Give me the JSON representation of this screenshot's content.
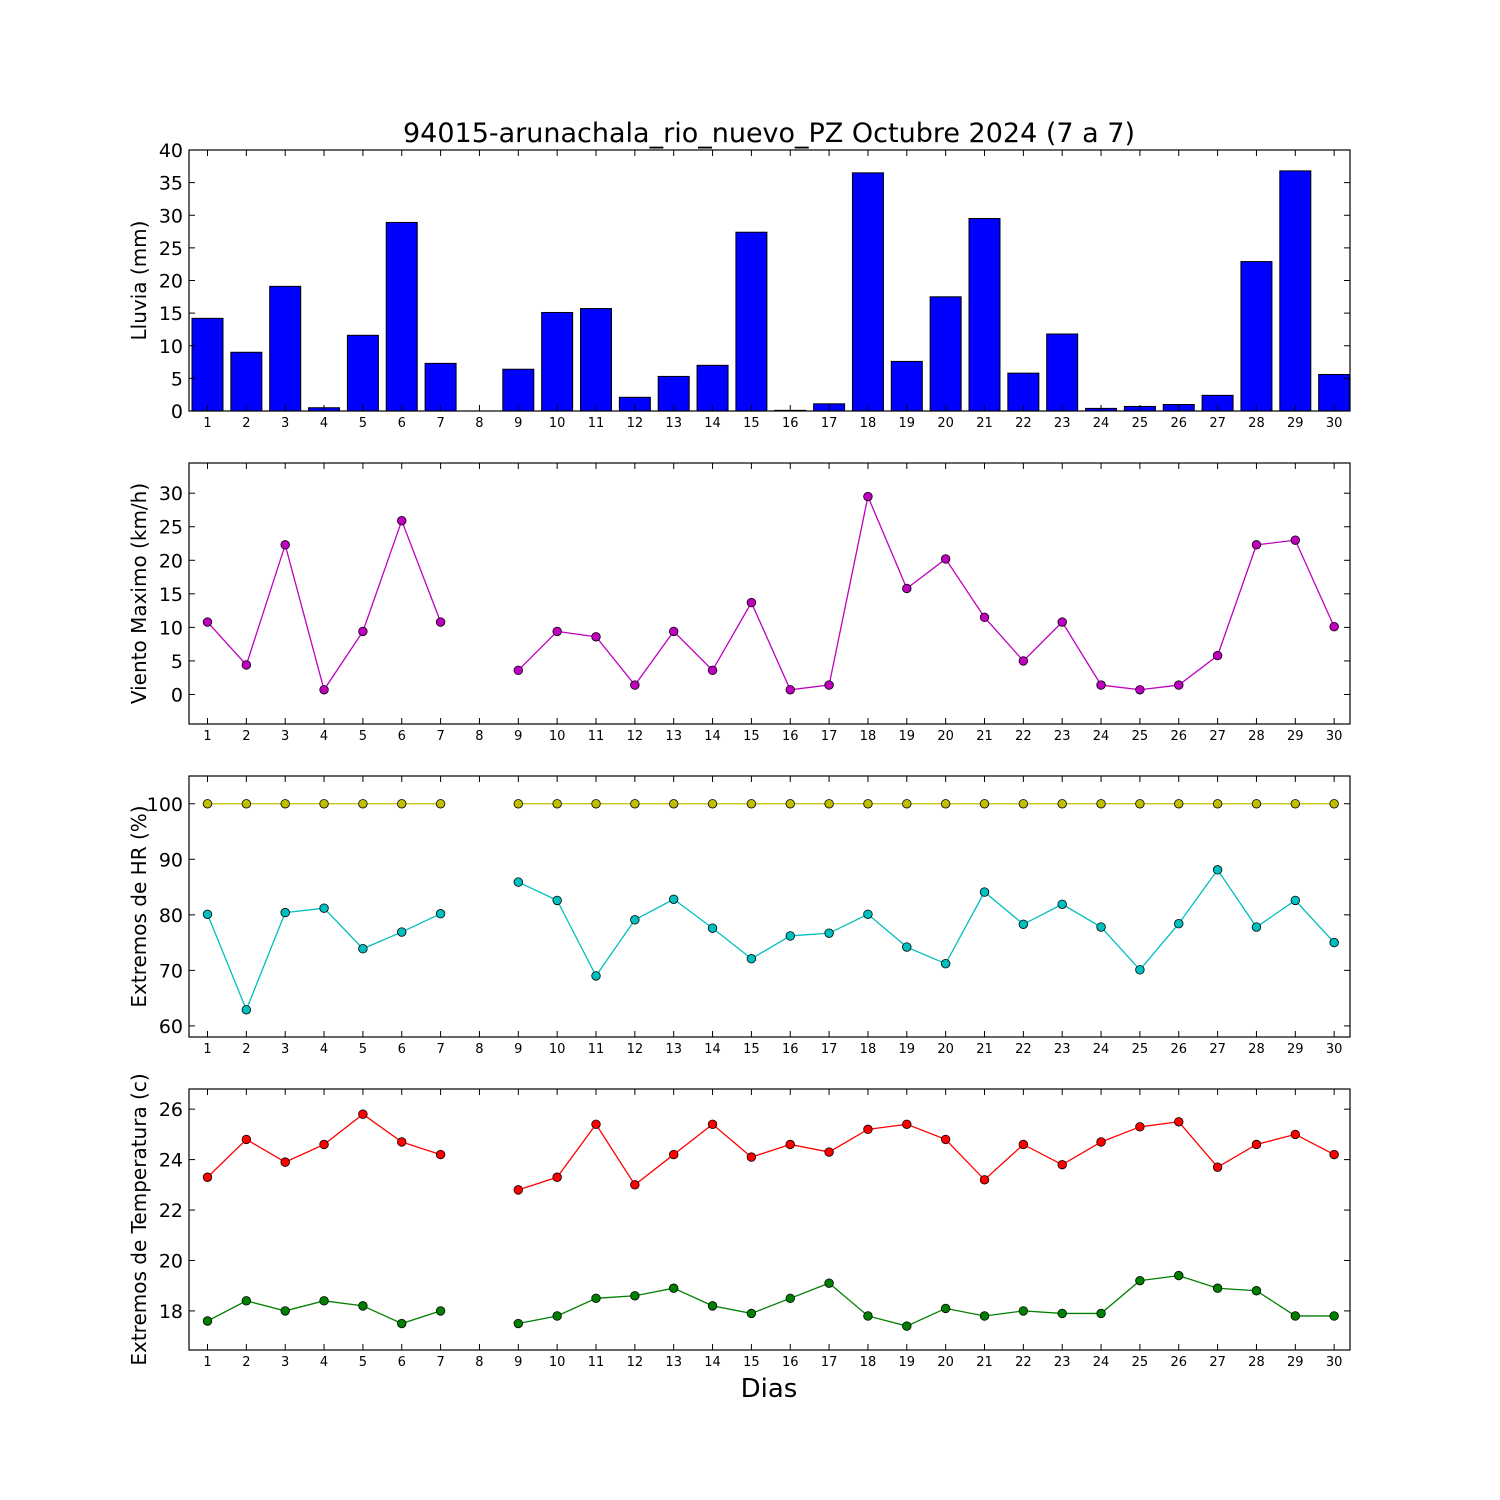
{
  "figure": {
    "title": "94015-arunachala_rio_nuevo_PZ Octubre 2024  (7 a 7)",
    "xlabel": "Dias"
  },
  "chart_data": [
    {
      "type": "bar",
      "ylabel": "Lluvia (mm)",
      "ylim": [
        0,
        40
      ],
      "yticks": [
        0,
        5,
        10,
        15,
        20,
        25,
        30,
        35,
        40
      ],
      "categories": [
        "1",
        "2",
        "3",
        "4",
        "5",
        "6",
        "7",
        "8",
        "9",
        "10",
        "11",
        "12",
        "13",
        "14",
        "15",
        "16",
        "17",
        "18",
        "19",
        "20",
        "21",
        "22",
        "23",
        "24",
        "25",
        "26",
        "27",
        "28",
        "29",
        "30"
      ],
      "grid": false,
      "series": [
        {
          "color": "#0000ff",
          "values": [
            14.2,
            9.0,
            19.1,
            0.5,
            11.6,
            28.9,
            7.3,
            null,
            6.4,
            15.1,
            15.7,
            2.1,
            5.3,
            7.0,
            27.4,
            0.1,
            1.1,
            36.5,
            7.6,
            17.5,
            29.5,
            5.8,
            11.8,
            0.4,
            0.7,
            1.0,
            2.4,
            22.9,
            36.8,
            5.6
          ]
        }
      ]
    },
    {
      "type": "line",
      "ylabel": "Viento Maximo (km/h)",
      "ylim": [
        -4.4,
        34.5
      ],
      "yticks": [
        0,
        5,
        10,
        15,
        20,
        25,
        30
      ],
      "categories": [
        "1",
        "2",
        "3",
        "4",
        "5",
        "6",
        "7",
        "8",
        "9",
        "10",
        "11",
        "12",
        "13",
        "14",
        "15",
        "16",
        "17",
        "18",
        "19",
        "20",
        "21",
        "22",
        "23",
        "24",
        "25",
        "26",
        "27",
        "28",
        "29",
        "30"
      ],
      "grid": false,
      "series": [
        {
          "color": "#bf00bf",
          "values": [
            10.8,
            4.4,
            22.3,
            0.7,
            9.4,
            25.9,
            10.8,
            null,
            3.6,
            9.4,
            8.6,
            1.4,
            9.4,
            3.6,
            13.7,
            0.7,
            1.4,
            29.5,
            15.8,
            20.2,
            11.5,
            5.0,
            10.8,
            1.4,
            0.7,
            1.4,
            5.8,
            22.3,
            23.0,
            10.1
          ]
        }
      ]
    },
    {
      "type": "line",
      "ylabel": "Extremos de HR (%)",
      "ylim": [
        58,
        105
      ],
      "yticks": [
        60,
        70,
        80,
        90,
        100
      ],
      "categories": [
        "1",
        "2",
        "3",
        "4",
        "5",
        "6",
        "7",
        "8",
        "9",
        "10",
        "11",
        "12",
        "13",
        "14",
        "15",
        "16",
        "17",
        "18",
        "19",
        "20",
        "21",
        "22",
        "23",
        "24",
        "25",
        "26",
        "27",
        "28",
        "29",
        "30"
      ],
      "grid": false,
      "series": [
        {
          "color": "#bfbf00",
          "values": [
            100,
            100,
            100,
            100,
            100,
            100,
            100,
            null,
            100,
            100,
            100,
            100,
            100,
            100,
            100,
            100,
            100,
            100,
            100,
            100,
            100,
            100,
            100,
            100,
            100,
            100,
            100,
            100,
            100,
            100
          ]
        },
        {
          "color": "#00bfbf",
          "values": [
            80.1,
            62.9,
            80.4,
            81.2,
            73.9,
            76.9,
            80.2,
            null,
            85.9,
            82.6,
            69.0,
            79.1,
            82.8,
            77.6,
            72.1,
            76.2,
            76.7,
            80.1,
            74.2,
            71.2,
            84.1,
            78.3,
            81.9,
            77.8,
            70.1,
            78.4,
            88.1,
            77.8,
            82.6,
            75.0
          ]
        }
      ]
    },
    {
      "type": "line",
      "ylabel": "Extremos de Temperatura (c)",
      "ylim": [
        16.45,
        26.8
      ],
      "yticks": [
        18,
        20,
        22,
        24,
        26
      ],
      "categories": [
        "1",
        "2",
        "3",
        "4",
        "5",
        "6",
        "7",
        "8",
        "9",
        "10",
        "11",
        "12",
        "13",
        "14",
        "15",
        "16",
        "17",
        "18",
        "19",
        "20",
        "21",
        "22",
        "23",
        "24",
        "25",
        "26",
        "27",
        "28",
        "29",
        "30"
      ],
      "grid": false,
      "series": [
        {
          "color": "#ff0000",
          "values": [
            23.3,
            24.8,
            23.9,
            24.6,
            25.8,
            24.7,
            24.2,
            null,
            22.8,
            23.3,
            25.4,
            23.0,
            24.2,
            25.4,
            24.1,
            24.6,
            24.3,
            25.2,
            25.4,
            24.8,
            23.2,
            24.6,
            23.8,
            24.7,
            25.3,
            25.5,
            23.7,
            24.6,
            25.0,
            24.2
          ]
        },
        {
          "color": "#008000",
          "values": [
            17.6,
            18.4,
            18.0,
            18.4,
            18.2,
            17.5,
            18.0,
            null,
            17.5,
            17.8,
            18.5,
            18.6,
            18.9,
            18.2,
            17.9,
            18.5,
            19.1,
            17.8,
            17.4,
            18.1,
            17.8,
            18.0,
            17.9,
            17.9,
            19.2,
            19.4,
            18.9,
            18.8,
            17.8,
            17.8
          ]
        }
      ]
    }
  ]
}
